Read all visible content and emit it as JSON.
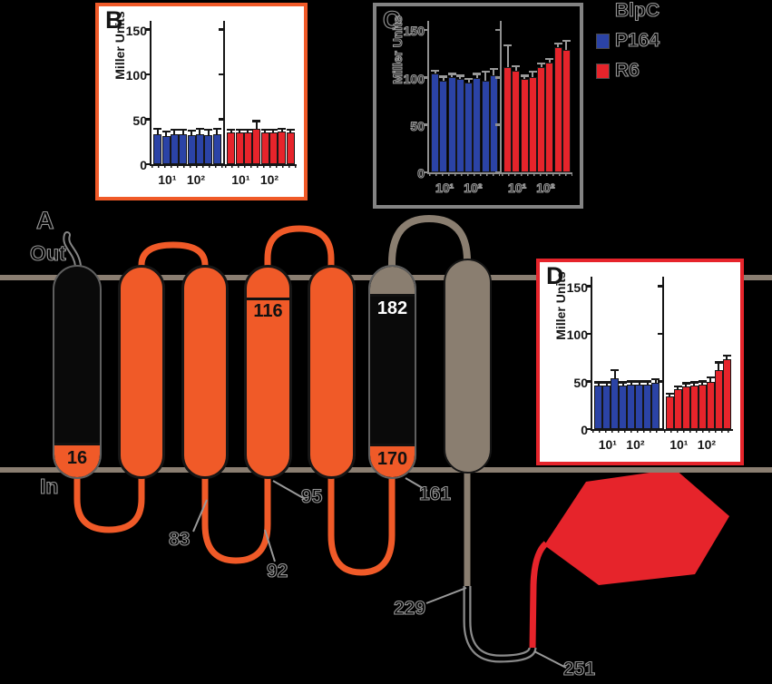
{
  "figure": {
    "panel_a_label": "A",
    "out_label": "Out",
    "in_label": "In",
    "residues": {
      "r16": "16",
      "r83": "83",
      "r92": "92",
      "r95": "95",
      "r116": "116",
      "r161": "161",
      "r170": "170",
      "r182": "182",
      "r229": "229",
      "r251": "251"
    },
    "colors": {
      "helix_orange": "#F05A28",
      "helix_taupe": "#8A7E70",
      "membrane": "#8A7E71",
      "hexagon_red": "#E6242B"
    }
  },
  "legend": {
    "title": "BlpC",
    "items": [
      {
        "label": "P164",
        "color": "#2B43A6"
      },
      {
        "label": "R6",
        "color": "#E6242B"
      }
    ]
  },
  "chart_data": [
    {
      "id": "B",
      "type": "bar",
      "title": "B",
      "ylabel": "Miller Units",
      "ylim": [
        0,
        160
      ],
      "yticks": [
        0,
        50,
        100,
        150
      ],
      "xticklabels": [
        "10¹",
        "10²"
      ],
      "series": [
        {
          "name": "P164",
          "color": "#2B43A6",
          "values": [
            33,
            31,
            33,
            33,
            32,
            33,
            32,
            33
          ],
          "errors": [
            5,
            4,
            4,
            4,
            4,
            5,
            5,
            5
          ]
        },
        {
          "name": "R6",
          "color": "#E6242B",
          "values": [
            35,
            35,
            35,
            40,
            35,
            35,
            36,
            35
          ],
          "errors": [
            2,
            2,
            2,
            7,
            2,
            2,
            2,
            2
          ]
        }
      ],
      "style": {
        "border": "#F05A28",
        "bg": "#ffffff",
        "text": "solid"
      }
    },
    {
      "id": "C",
      "type": "bar",
      "title": "C",
      "ylabel": "Miller Units",
      "ylim": [
        0,
        160
      ],
      "yticks": [
        0,
        50,
        100,
        150
      ],
      "xticklabels": [
        "10¹",
        "10²"
      ],
      "series": [
        {
          "name": "P164",
          "color": "#2B43A6",
          "values": [
            104,
            97,
            101,
            99,
            95,
            100,
            97,
            103
          ],
          "errors": [
            2,
            3,
            2,
            2,
            3,
            3,
            8,
            5
          ]
        },
        {
          "name": "R6",
          "color": "#E6242B",
          "values": [
            111,
            107,
            99,
            101,
            111,
            116,
            132,
            129
          ],
          "errors": [
            22,
            4,
            2,
            4,
            3,
            3,
            3,
            9
          ]
        }
      ],
      "style": {
        "border": "#838383",
        "bg": "transparent",
        "text": "ghost"
      }
    },
    {
      "id": "D",
      "type": "bar",
      "title": "D",
      "ylabel": "Miller Units",
      "ylim": [
        0,
        160
      ],
      "yticks": [
        0,
        50,
        100,
        150
      ],
      "xticklabels": [
        "10¹",
        "10²"
      ],
      "series": [
        {
          "name": "P164",
          "color": "#2B43A6",
          "values": [
            46,
            46,
            53,
            46,
            47,
            47,
            47,
            49
          ],
          "errors": [
            2,
            2,
            8,
            2,
            2,
            2,
            2,
            2
          ]
        },
        {
          "name": "R6",
          "color": "#E6242B",
          "values": [
            34,
            42,
            45,
            46,
            47,
            50,
            62,
            73
          ],
          "errors": [
            2,
            2,
            2,
            2,
            2,
            3,
            7,
            3
          ]
        }
      ],
      "style": {
        "border": "#E6242B",
        "bg": "#ffffff",
        "text": "solid"
      }
    }
  ]
}
